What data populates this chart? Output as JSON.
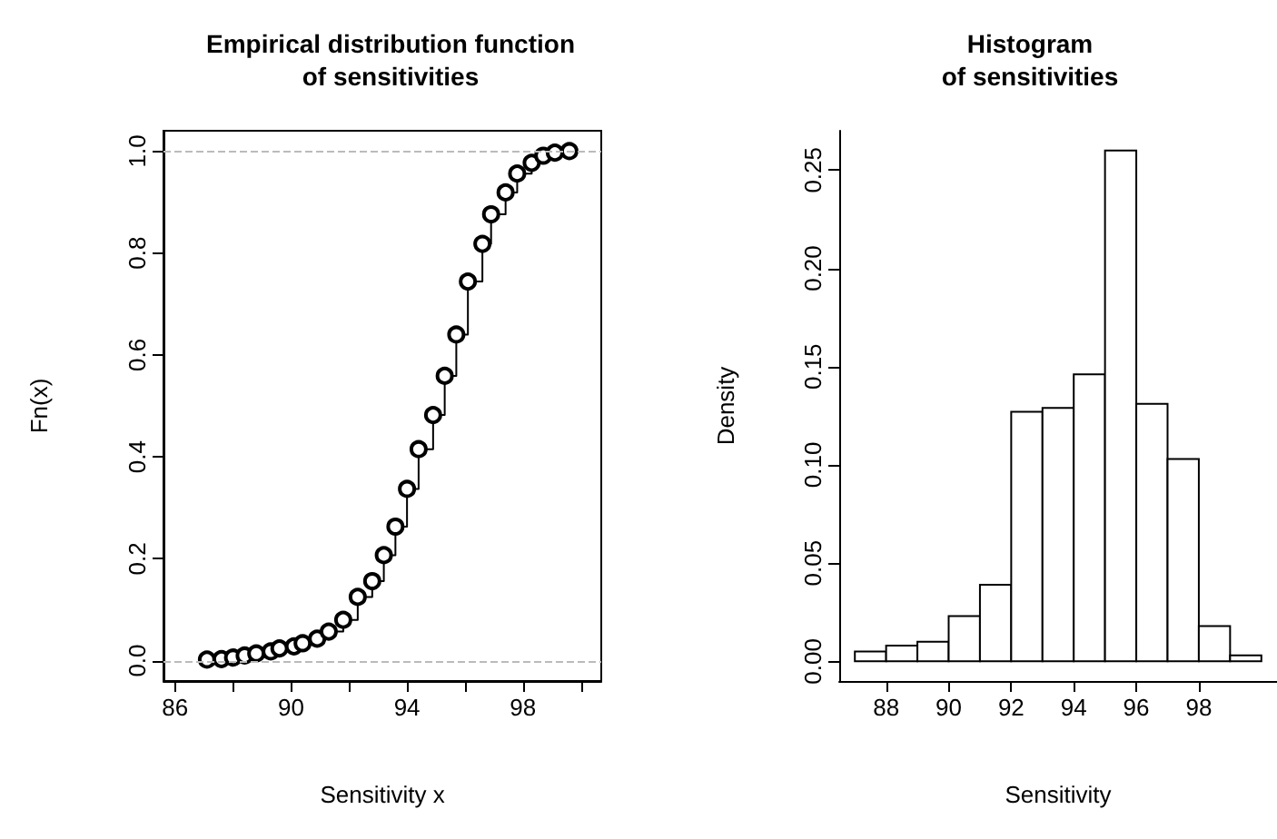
{
  "chart_data": [
    {
      "type": "step",
      "title": "Empirical distribution function\nof sensitivities",
      "xlabel": "Sensitivity x",
      "ylabel": "Fn(x)",
      "marker": "circle",
      "line_style": "solid",
      "grid": false,
      "x": [
        87.1,
        87.6,
        88.0,
        88.4,
        88.8,
        89.3,
        89.6,
        90.1,
        90.4,
        90.9,
        91.3,
        91.8,
        92.3,
        92.8,
        93.2,
        93.6,
        94.0,
        94.4,
        94.9,
        95.3,
        95.7,
        96.1,
        96.6,
        96.9,
        97.4,
        97.8,
        98.3,
        98.7,
        99.1,
        99.6
      ],
      "series": [
        {
          "color": "#000000",
          "values": [
            0.002,
            0.003,
            0.006,
            0.01,
            0.014,
            0.018,
            0.024,
            0.028,
            0.034,
            0.043,
            0.057,
            0.08,
            0.125,
            0.156,
            0.207,
            0.263,
            0.337,
            0.415,
            0.482,
            0.559,
            0.64,
            0.744,
            0.818,
            0.876,
            0.919,
            0.956,
            0.977,
            0.991,
            0.997,
            1.0
          ]
        }
      ],
      "xlim": [
        85.6,
        100.7
      ],
      "xticks": [
        86,
        {
          "value": 88,
          "label": null
        },
        90,
        {
          "value": 92,
          "label": null
        },
        94,
        {
          "value": 96,
          "label": null
        },
        98,
        {
          "value": 100,
          "label": null
        }
      ],
      "ylim": [
        -0.04,
        1.04
      ],
      "yticks": [
        {
          "value": 0,
          "label": "0.0"
        },
        0.2,
        0.4,
        0.6,
        0.8,
        {
          "value": 1,
          "label": "1.0"
        }
      ],
      "ref_lines": [
        {
          "axis": "y",
          "value": 0,
          "color": "#bbbbbb",
          "line_style": "dashed"
        },
        {
          "axis": "y",
          "value": 1,
          "color": "#bbbbbb",
          "line_style": "dashed"
        }
      ]
    },
    {
      "type": "histogram",
      "title": "Histogram\nof sensitivities",
      "xlabel": "Sensitivity",
      "ylabel": "Density",
      "color": "#ffffff",
      "grid": false,
      "bins": [
        87,
        88,
        89,
        90,
        91,
        92,
        93,
        94,
        95,
        96,
        97,
        98,
        99,
        100
      ],
      "values": [
        0.005,
        0.008,
        0.01,
        0.023,
        0.039,
        0.127,
        0.129,
        0.146,
        0.26,
        0.131,
        0.103,
        0.018,
        0.003
      ],
      "xlim": [
        86.5,
        100.5
      ],
      "xticks": [
        88,
        90,
        92,
        94,
        96,
        98
      ],
      "ylim": [
        -0.01,
        0.27
      ],
      "yticks": [
        {
          "value": 0,
          "label": "0.00"
        },
        0.05,
        {
          "value": 0.1,
          "label": "0.10"
        },
        0.15,
        {
          "value": 0.2,
          "label": "0.20"
        },
        0.25
      ]
    }
  ]
}
